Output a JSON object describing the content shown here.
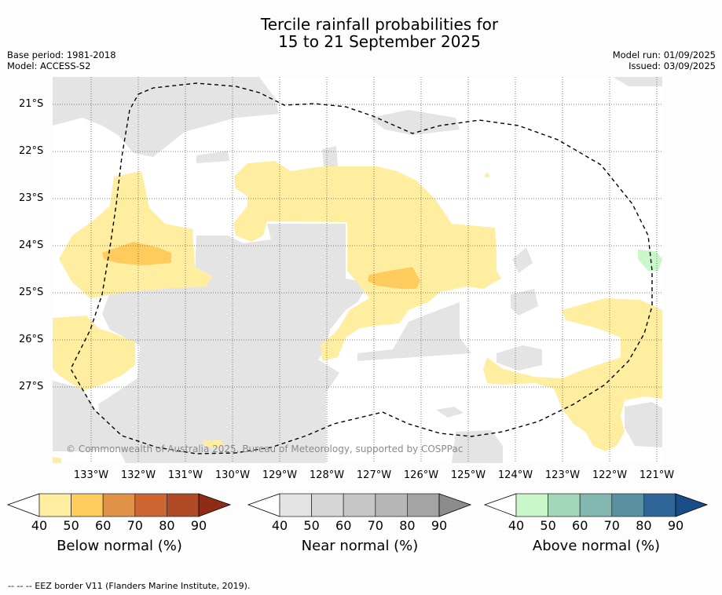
{
  "title_line1": "Tercile rainfall probabilities for",
  "title_line2": "15 to 21 September 2025",
  "base_period": "Base period: 1981-2018",
  "model": "Model: ACCESS-S2",
  "model_run": "Model run: 01/09/2025",
  "issued": "Issued: 03/09/2025",
  "lat_labels": [
    "21°S",
    "22°S",
    "23°S",
    "24°S",
    "25°S",
    "26°S",
    "27°S"
  ],
  "lon_labels": [
    "133°W",
    "132°W",
    "131°W",
    "130°W",
    "129°W",
    "128°W",
    "127°W",
    "126°W",
    "125°W",
    "124°W",
    "123°W",
    "122°W",
    "121°W"
  ],
  "copyright": "© Commonwealth of Australia 2025, Bureau of Meteorology, supported by COSPPac",
  "colorbars": [
    {
      "label": "Below normal (%)",
      "ticks": [
        "40",
        "50",
        "60",
        "70",
        "80",
        "90"
      ],
      "colors": [
        "#ffeda0",
        "#fecc5c",
        "#e09347",
        "#cf6632",
        "#b04a25",
        "#8f2c17"
      ]
    },
    {
      "label": "Near normal (%)",
      "ticks": [
        "40",
        "50",
        "60",
        "70",
        "80",
        "90"
      ],
      "colors": [
        "#e4e4e4",
        "#d6d6d6",
        "#c6c6c6",
        "#b6b6b6",
        "#a4a4a4",
        "#8c8c8c"
      ]
    },
    {
      "label": "Above normal (%)",
      "ticks": [
        "40",
        "50",
        "60",
        "70",
        "80",
        "90"
      ],
      "colors": [
        "#c9f7c9",
        "#a2d8b9",
        "#82b7b1",
        "#5a91a0",
        "#2f6597",
        "#1a4c88"
      ]
    }
  ],
  "footer": "--  --  -- EEZ border V11 (Flanders Marine Institute, 2019)."
}
